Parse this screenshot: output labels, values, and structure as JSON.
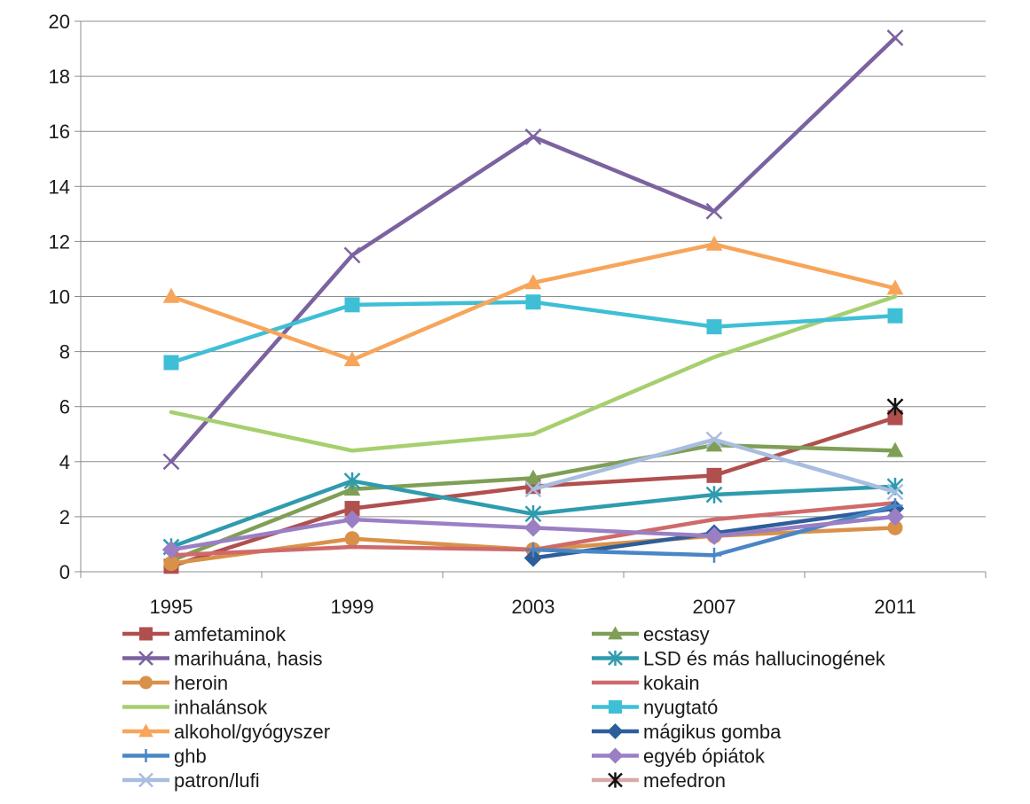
{
  "chart_data": {
    "type": "line",
    "title": "",
    "xlabel": "",
    "ylabel": "",
    "x": [
      "1995",
      "1999",
      "2003",
      "2007",
      "2011"
    ],
    "ylim": [
      0,
      20
    ],
    "yticks": [
      0,
      2,
      4,
      6,
      8,
      10,
      12,
      14,
      16,
      18,
      20
    ],
    "grid": "horizontal",
    "legend_position": "bottom",
    "series": [
      {
        "name": "amfetaminok",
        "color": "#b0504e",
        "marker": "square",
        "values": [
          0.2,
          2.3,
          3.1,
          3.5,
          5.6
        ]
      },
      {
        "name": "ecstasy",
        "color": "#7f9f57",
        "marker": "triangle",
        "values": [
          0.4,
          3.0,
          3.4,
          4.6,
          4.4
        ]
      },
      {
        "name": "marihuána, hasis",
        "color": "#7b62a0",
        "marker": "x",
        "values": [
          4.0,
          11.5,
          15.8,
          13.1,
          19.4
        ]
      },
      {
        "name": "LSD és más hallucinogének",
        "color": "#2f9bae",
        "marker": "asterisk",
        "values": [
          0.9,
          3.3,
          2.1,
          2.8,
          3.1
        ]
      },
      {
        "name": "heroin",
        "color": "#d9914a",
        "marker": "circle",
        "values": [
          0.3,
          1.2,
          0.8,
          1.3,
          1.6
        ]
      },
      {
        "name": "kokain",
        "color": "#cf6a6a",
        "marker": "none",
        "values": [
          0.6,
          0.9,
          0.8,
          1.9,
          2.5
        ]
      },
      {
        "name": "inhalánsok",
        "color": "#a6cf6e",
        "marker": "none",
        "values": [
          5.8,
          4.4,
          5.0,
          7.8,
          10.0
        ]
      },
      {
        "name": "nyugtató",
        "color": "#3fbfd6",
        "marker": "square",
        "values": [
          7.6,
          9.7,
          9.8,
          8.9,
          9.3
        ]
      },
      {
        "name": "alkohol/gyógyszer",
        "color": "#f7a55a",
        "marker": "triangle",
        "values": [
          10.0,
          7.7,
          10.5,
          11.9,
          10.3
        ]
      },
      {
        "name": "mágikus gomba",
        "color": "#2e5e9a",
        "marker": "diamond",
        "values": [
          null,
          null,
          0.5,
          1.4,
          2.3
        ]
      },
      {
        "name": "ghb",
        "color": "#4a86c5",
        "marker": "plus",
        "values": [
          null,
          null,
          0.8,
          0.6,
          2.4
        ]
      },
      {
        "name": "egyéb ópiátok",
        "color": "#9a7fc4",
        "marker": "diamond",
        "values": [
          0.8,
          1.9,
          1.6,
          1.3,
          2.0
        ]
      },
      {
        "name": "patron/lufi",
        "color": "#a8bde0",
        "marker": "x",
        "values": [
          null,
          null,
          3.0,
          4.8,
          2.9
        ]
      },
      {
        "name": "mefedron",
        "color": "#d9a8a8",
        "marker": "asterisk",
        "marker_color": "#111111",
        "values": [
          null,
          null,
          null,
          null,
          6.0
        ]
      }
    ]
  }
}
